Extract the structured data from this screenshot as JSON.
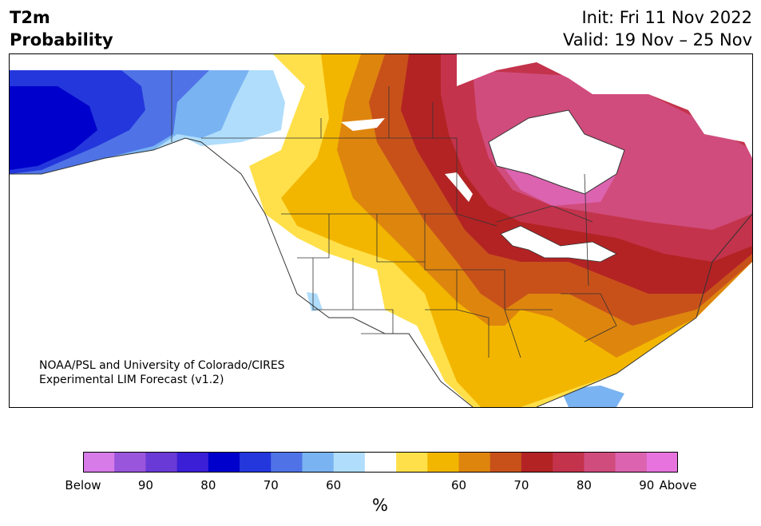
{
  "header": {
    "title_line1": "T2m",
    "title_line2": "Probability",
    "init_text": "Init: Fri 11 Nov 2022",
    "valid_text": "Valid: 19 Nov – 25 Nov"
  },
  "credit": {
    "line1": "NOAA/PSL and University of Colorado/CIRES",
    "line2": "Experimental LIM Forecast (v1.2)"
  },
  "colorbar": {
    "units": "%",
    "colors": [
      "#d67be8",
      "#9a55dd",
      "#6a3ad6",
      "#3a1fd6",
      "#0000cc",
      "#2437dc",
      "#4f73e6",
      "#79b3f2",
      "#b0ddfb",
      "#ffffff",
      "#ffe04a",
      "#f3b600",
      "#de850e",
      "#c8511a",
      "#b32324",
      "#c3334b",
      "#d04c7c",
      "#dc63af",
      "#e774de"
    ],
    "labels": [
      "Below",
      "90",
      "80",
      "70",
      "60",
      "60",
      "70",
      "80",
      "90",
      "Above"
    ]
  },
  "map": {
    "region": "North America",
    "land_color": "#ffffff",
    "lake_color": "#ffffff",
    "border_color": "#333333"
  }
}
